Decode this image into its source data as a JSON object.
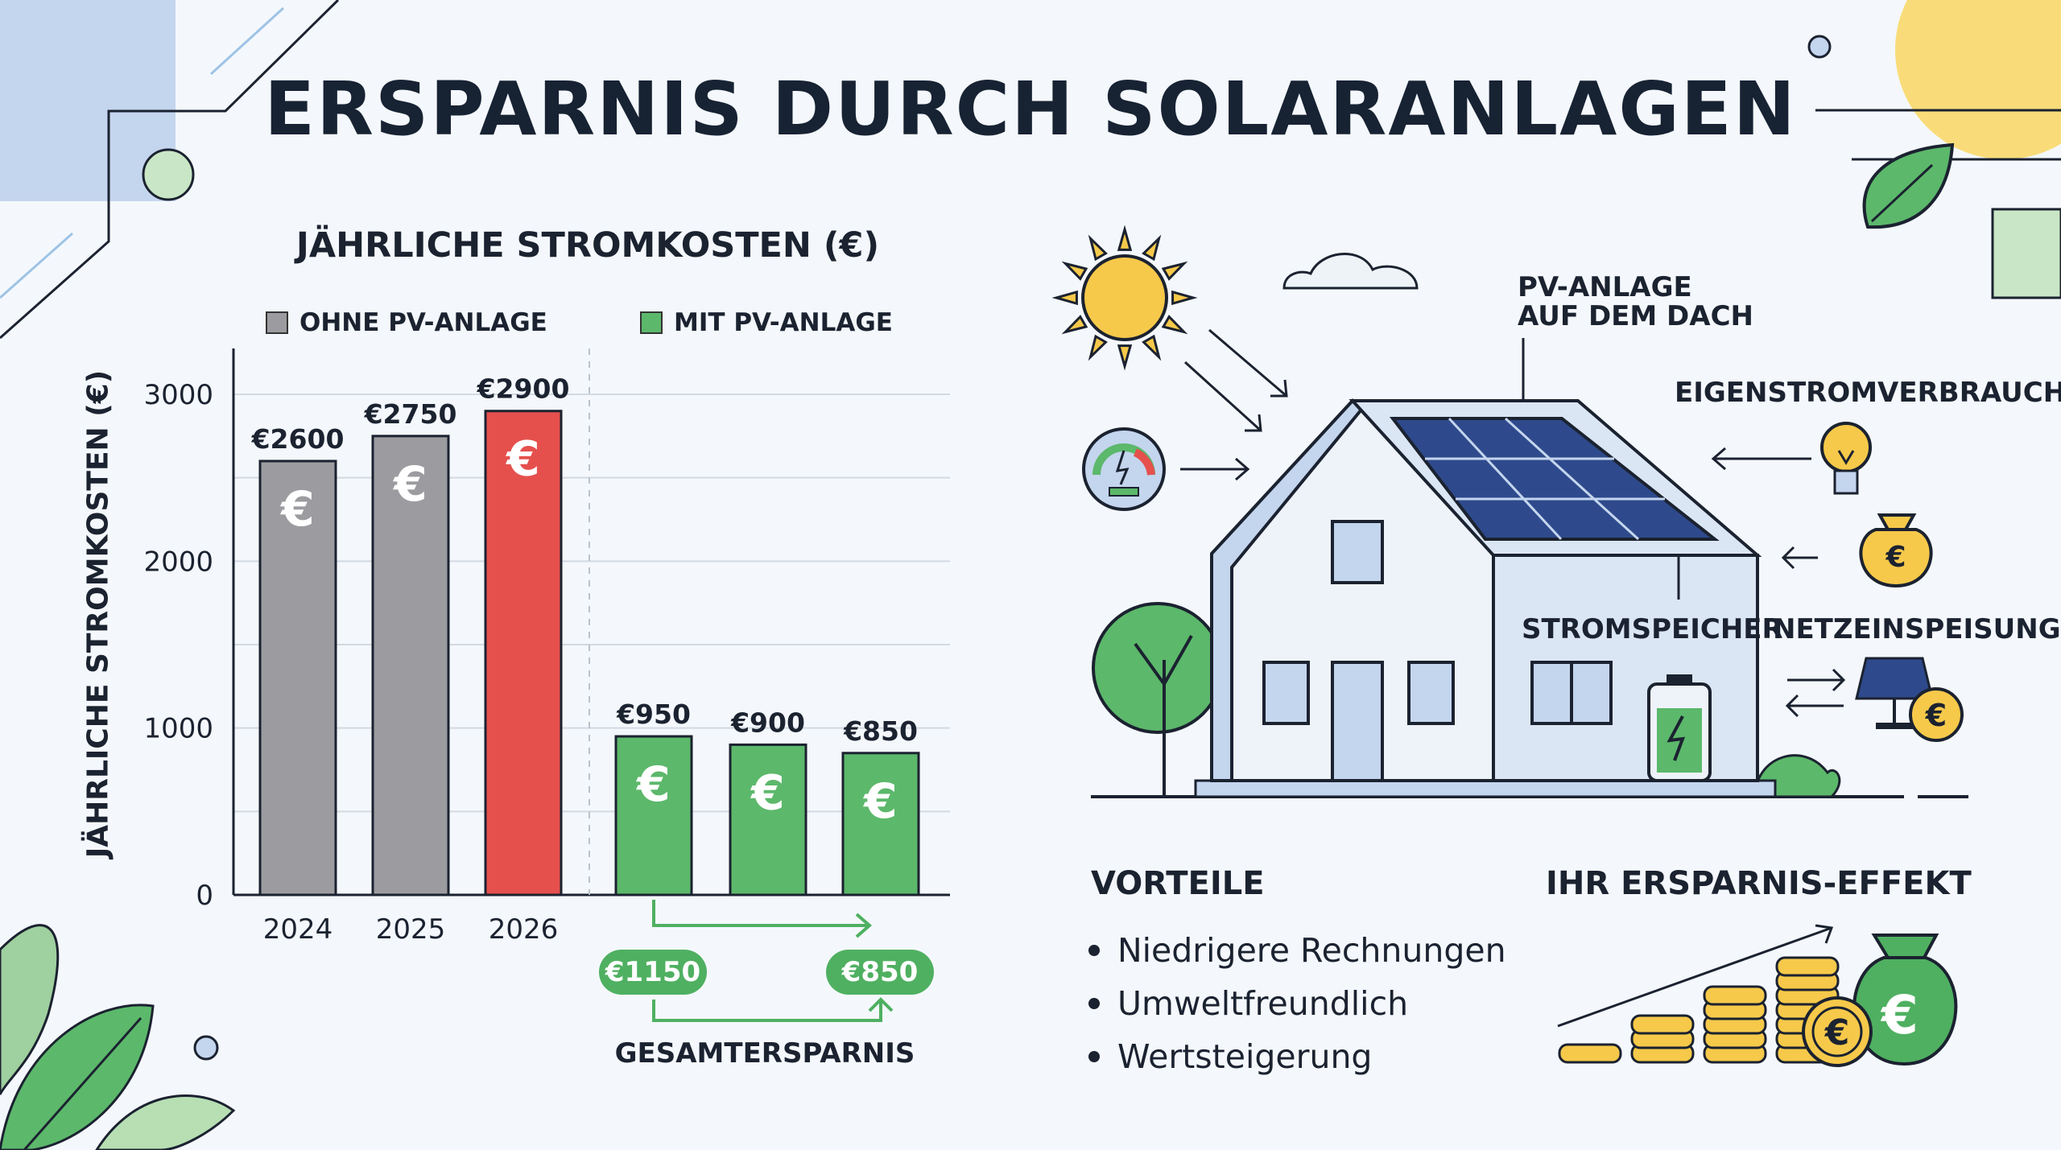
{
  "title": "ERSPARNIS DURCH SOLARANLAGEN",
  "chart_data": {
    "type": "bar",
    "title": "JÄHRLICHE STROMKOSTEN (€)",
    "ylabel": "JÄHRLICHE STROMKOSTEN (€)",
    "xlabel": "",
    "ylim": [
      0,
      3000
    ],
    "yticks": [
      0,
      1000,
      2000,
      3000
    ],
    "grid": true,
    "legend_position": "top",
    "categories": [
      "2024",
      "2025",
      "2026"
    ],
    "series": [
      {
        "name": "OHNE PV-ANLAGE",
        "color": "#9c9ca0",
        "values": [
          2600,
          2750,
          2900
        ],
        "labels": [
          "€2600",
          "€2750",
          "€2900"
        ],
        "bar_colors": [
          "#9c9ca0",
          "#9c9ca0",
          "#e5504d"
        ]
      },
      {
        "name": "MIT PV-ANLAGE",
        "color": "#5cb86b",
        "values": [
          950,
          900,
          850
        ],
        "labels": [
          "€950",
          "€900",
          "€850"
        ],
        "bar_colors": [
          "#5cb86b",
          "#5cb86b",
          "#5cb86b"
        ]
      }
    ],
    "bar_symbol": "€"
  },
  "savings": {
    "pill_left": "€1150",
    "pill_right": "€850",
    "caption": "GESAMTERSPARNIS"
  },
  "illustration": {
    "pv_roof_label_line1": "PV-ANLAGE",
    "pv_roof_label_line2": "AUF DEM DACH",
    "self_consumption_label": "EIGENSTROMVERBRAUCH",
    "storage_label": "STROMSPEICHER",
    "grid_feed_label": "NETZEINSPEISUNG",
    "euro_symbol": "€"
  },
  "advantages": {
    "heading": "VORTEILE",
    "items": [
      "Niedrigere Rechnungen",
      "Umweltfreundlich",
      "Wertsteigerung"
    ]
  },
  "effect": {
    "heading": "IHR ERSPARNIS-EFFEKT"
  },
  "colors": {
    "grey_bar": "#9c9ca0",
    "red_bar": "#e5504d",
    "green_bar": "#5cb86b",
    "gold": "#f2c94c",
    "solar_blue": "#2e4a8c"
  }
}
